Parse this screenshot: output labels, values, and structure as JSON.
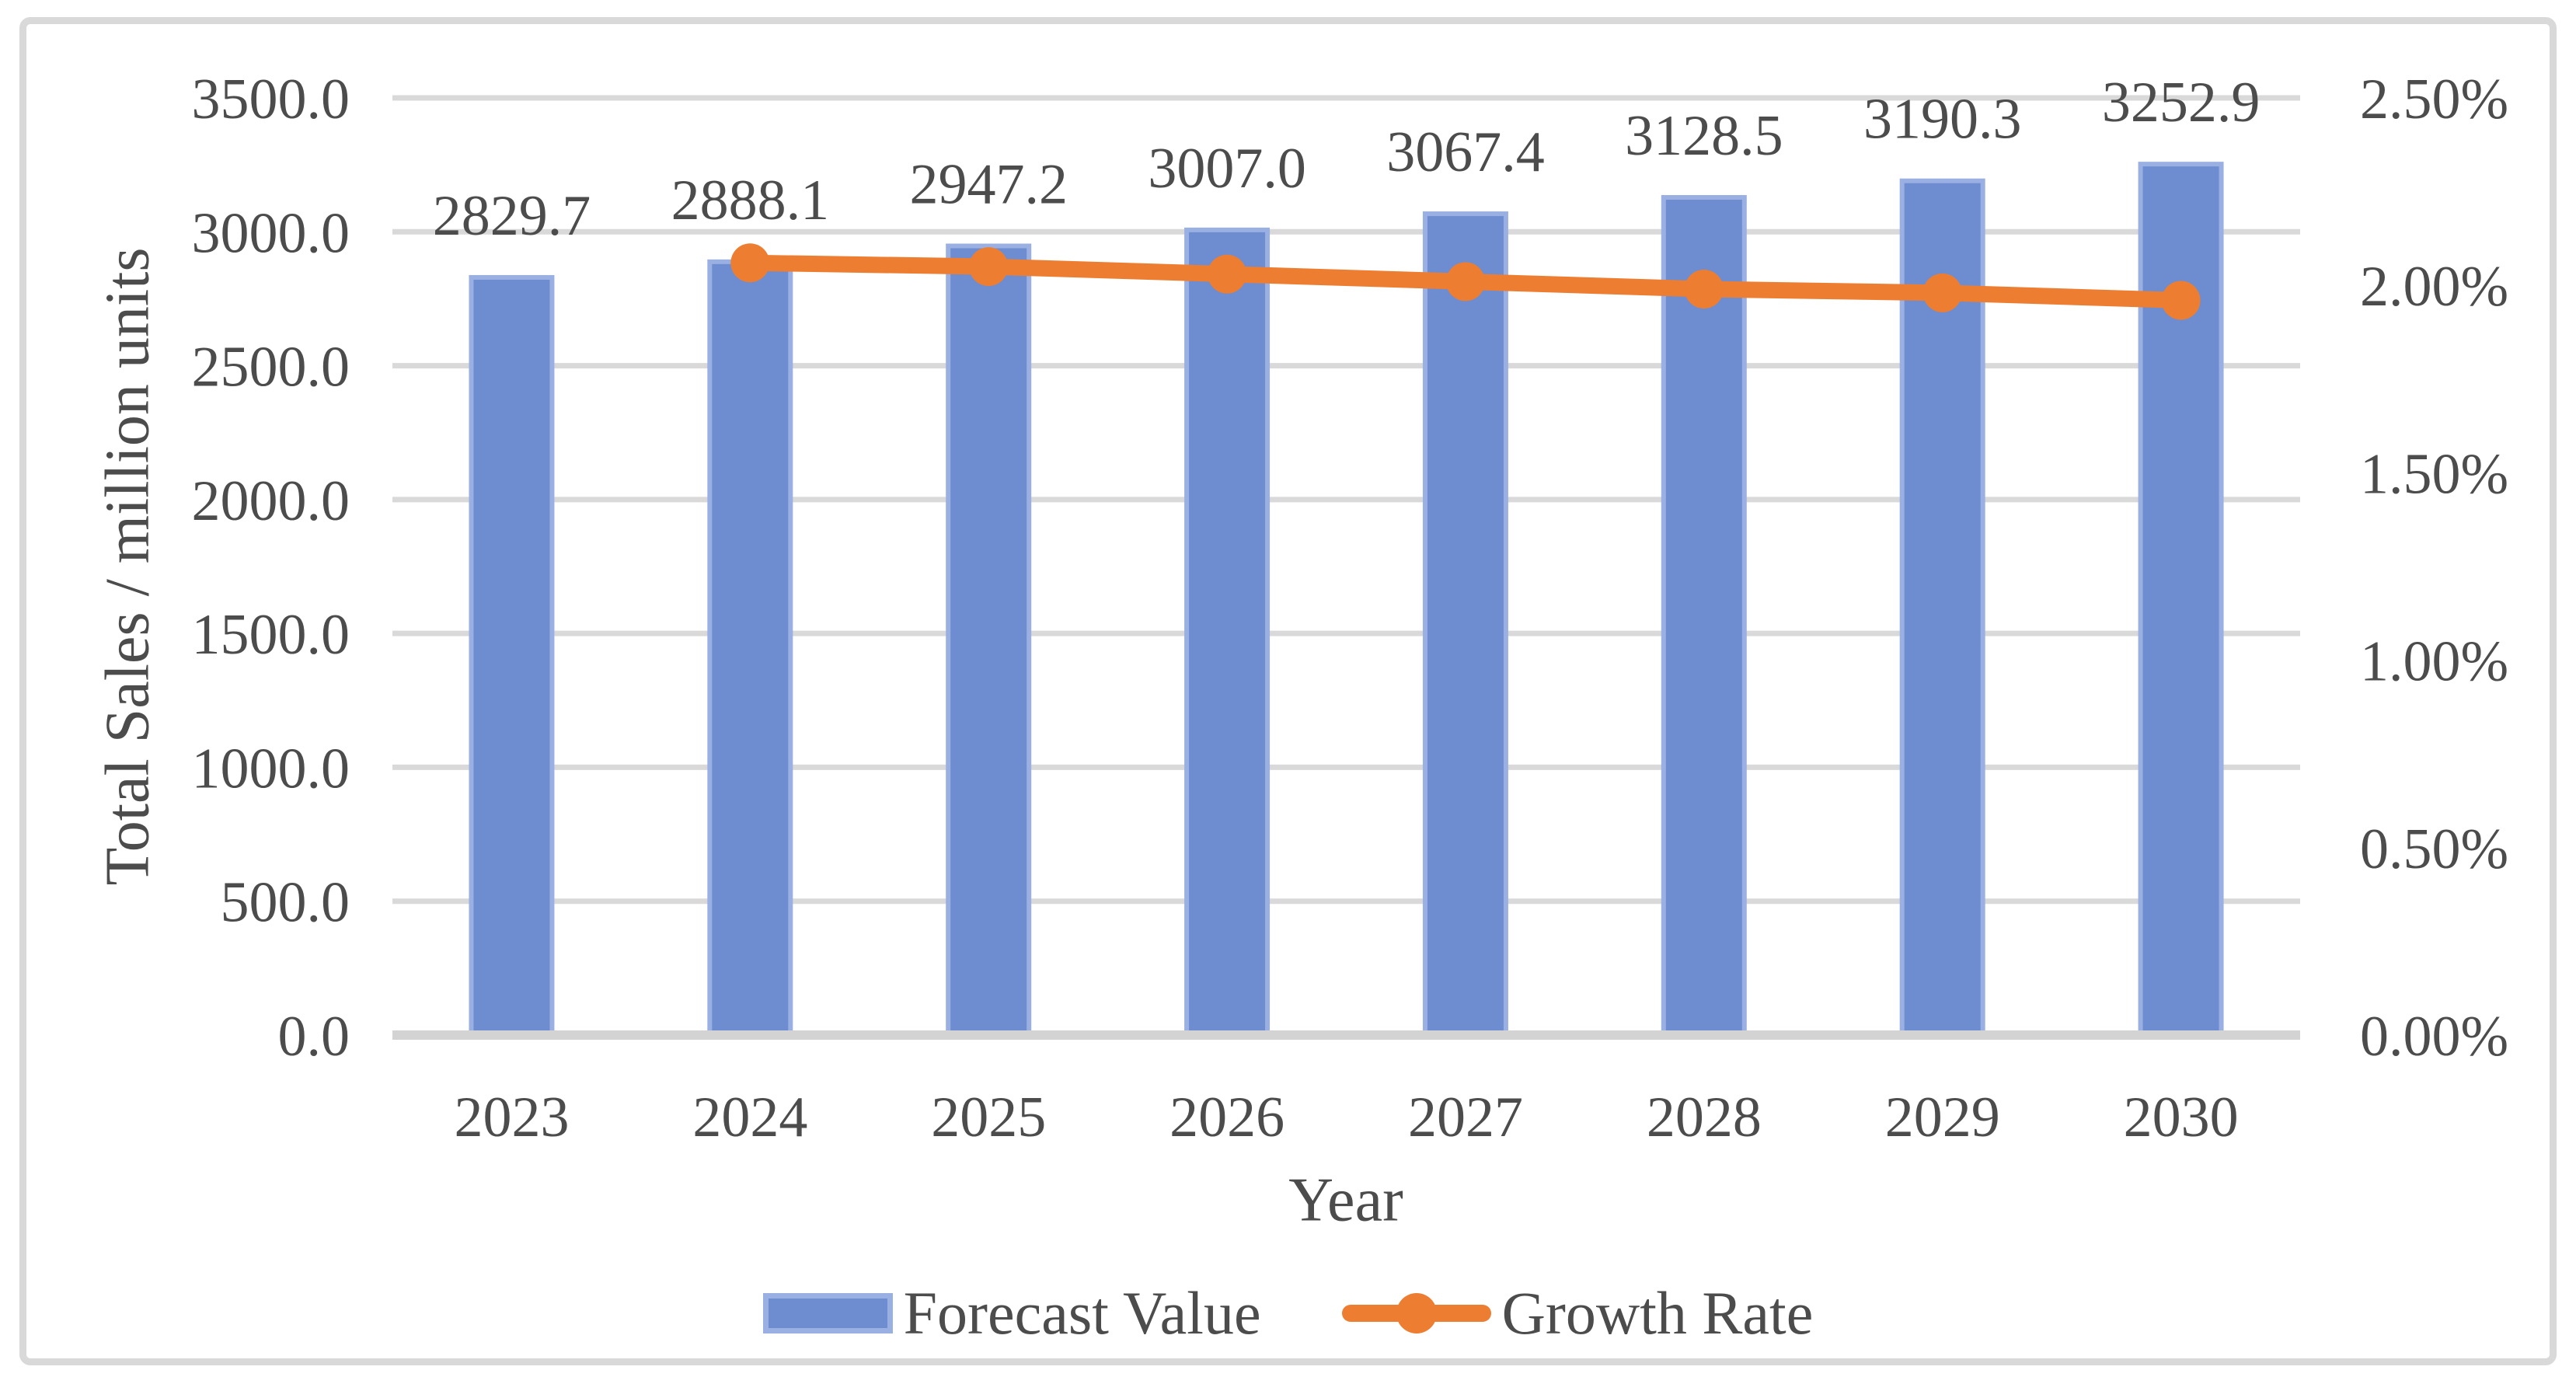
{
  "figure": {
    "colors": {
      "bar_fill": "#6D8DD0",
      "bar_border": "#9BB0E2",
      "line_orange": "#ED7D31",
      "gridline": "#D9D9D9",
      "axis_line": "#D3D3D3",
      "text": "#4C4C4C",
      "frame_border": "#D9D9D9"
    },
    "y_axis": {
      "title": "Total Sales / million units"
    },
    "x_axis": {
      "title": "Year"
    },
    "legend": {
      "bar_label": "Forecast Value",
      "line_label": "Growth Rate"
    }
  },
  "chart_data": {
    "type": "bar+line-combo",
    "title": "",
    "xlabel": "Year",
    "ylabel": "Total Sales / million units",
    "categories": [
      "2023",
      "2024",
      "2025",
      "2026",
      "2027",
      "2028",
      "2029",
      "2030"
    ],
    "series": [
      {
        "name": "Forecast Value",
        "type": "bar",
        "axis": "left",
        "values": [
          2829.7,
          2888.1,
          2947.2,
          3007.0,
          3067.4,
          3128.5,
          3190.3,
          3252.9
        ]
      },
      {
        "name": "Growth Rate",
        "type": "line",
        "axis": "right",
        "values_percent": [
          null,
          2.06,
          2.05,
          2.03,
          2.01,
          1.99,
          1.98,
          1.96
        ]
      }
    ],
    "data_labels": [
      "2829.7",
      "2888.1",
      "2947.2",
      "3007.0",
      "3067.4",
      "3128.5",
      "3190.3",
      "3252.9"
    ],
    "left_axis": {
      "min": 0,
      "max": 3500,
      "ticks": [
        3500,
        3000,
        2500,
        2000,
        1500,
        1000,
        500,
        0
      ],
      "tick_labels": [
        "3500.0",
        "3000.0",
        "2500.0",
        "2000.0",
        "1500.0",
        "1000.0",
        "500.0",
        "0.0"
      ]
    },
    "right_axis": {
      "min": 0,
      "max": 2.5,
      "ticks": [
        2.5,
        2.0,
        1.5,
        1.0,
        0.5,
        0
      ],
      "tick_labels": [
        "2.50%",
        "2.00%",
        "1.50%",
        "1.00%",
        "0.50%",
        "0.00%"
      ]
    },
    "grid": true,
    "legend_position": "bottom"
  }
}
